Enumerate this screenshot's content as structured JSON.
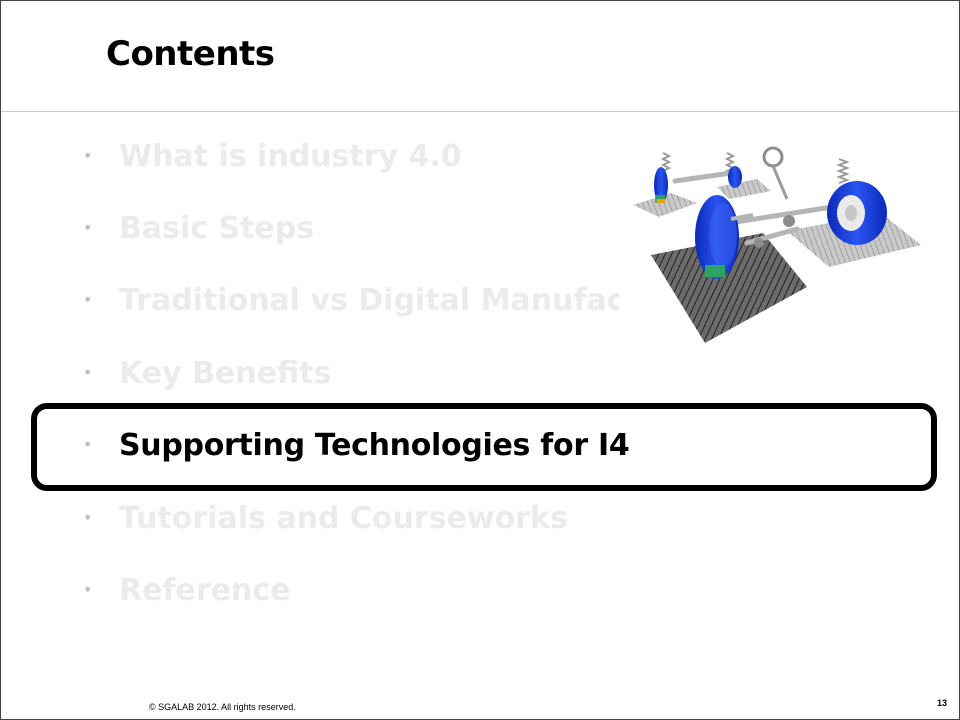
{
  "slide": {
    "title": "Contents",
    "bullet_glyph": "•",
    "items": [
      {
        "label": "What is industry 4.0",
        "state": "dimmed"
      },
      {
        "label": "Basic Steps",
        "state": "dimmed"
      },
      {
        "label": "Traditional vs Digital Manufactur",
        "state": "dimmed"
      },
      {
        "label": "Key Benefits",
        "state": "dimmed"
      },
      {
        "label": "Supporting Technologies for I4",
        "state": "active"
      },
      {
        "label": "Tutorials and Courseworks",
        "state": "dimmed"
      },
      {
        "label": "Reference",
        "state": "dimmed"
      }
    ],
    "figure_icon": "vehicle-suspension-illustration",
    "footer": "© SGALAB 2012. All rights reserved.",
    "page_number": "13"
  },
  "colors": {
    "active_text": "#000000",
    "dimmed_text": "#ebebeb",
    "tire_blue": "#1f3fd1",
    "highlight_border": "#000000"
  }
}
